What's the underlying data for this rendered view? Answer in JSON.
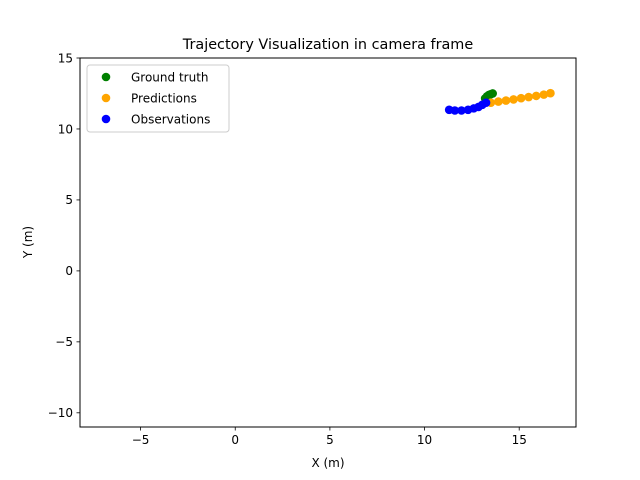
{
  "chart_data": {
    "type": "scatter",
    "title": "Trajectory Visualization in camera frame",
    "xlabel": "X (m)",
    "ylabel": "Y (m)",
    "xlim": [
      -8.2,
      18.0
    ],
    "ylim": [
      -11.0,
      15.0
    ],
    "xticks": [
      -5,
      0,
      5,
      10,
      15
    ],
    "yticks": [
      -10,
      -5,
      0,
      5,
      10,
      15
    ],
    "xtick_labels": [
      "−5",
      "0",
      "5",
      "10",
      "15"
    ],
    "ytick_labels": [
      "−10",
      "−5",
      "0",
      "5",
      "10",
      "15"
    ],
    "grid": false,
    "legend_position": "upper-left",
    "series": [
      {
        "name": "Ground truth",
        "color": "#008000",
        "points": [
          [
            13.2,
            12.15
          ],
          [
            13.3,
            12.3
          ],
          [
            13.4,
            12.4
          ],
          [
            13.5,
            12.45
          ],
          [
            13.6,
            12.5
          ]
        ]
      },
      {
        "name": "Predictions",
        "color": "#ffa500",
        "points": [
          [
            13.5,
            11.85
          ],
          [
            13.9,
            11.93
          ],
          [
            14.3,
            12.0
          ],
          [
            14.7,
            12.08
          ],
          [
            15.1,
            12.17
          ],
          [
            15.5,
            12.25
          ],
          [
            15.9,
            12.33
          ],
          [
            16.3,
            12.42
          ],
          [
            16.65,
            12.52
          ]
        ]
      },
      {
        "name": "Observations",
        "color": "#0000ff",
        "points": [
          [
            11.3,
            11.35
          ],
          [
            11.6,
            11.3
          ],
          [
            11.95,
            11.3
          ],
          [
            12.3,
            11.35
          ],
          [
            12.6,
            11.45
          ],
          [
            12.85,
            11.55
          ],
          [
            13.05,
            11.7
          ],
          [
            13.25,
            11.85
          ]
        ]
      }
    ]
  }
}
